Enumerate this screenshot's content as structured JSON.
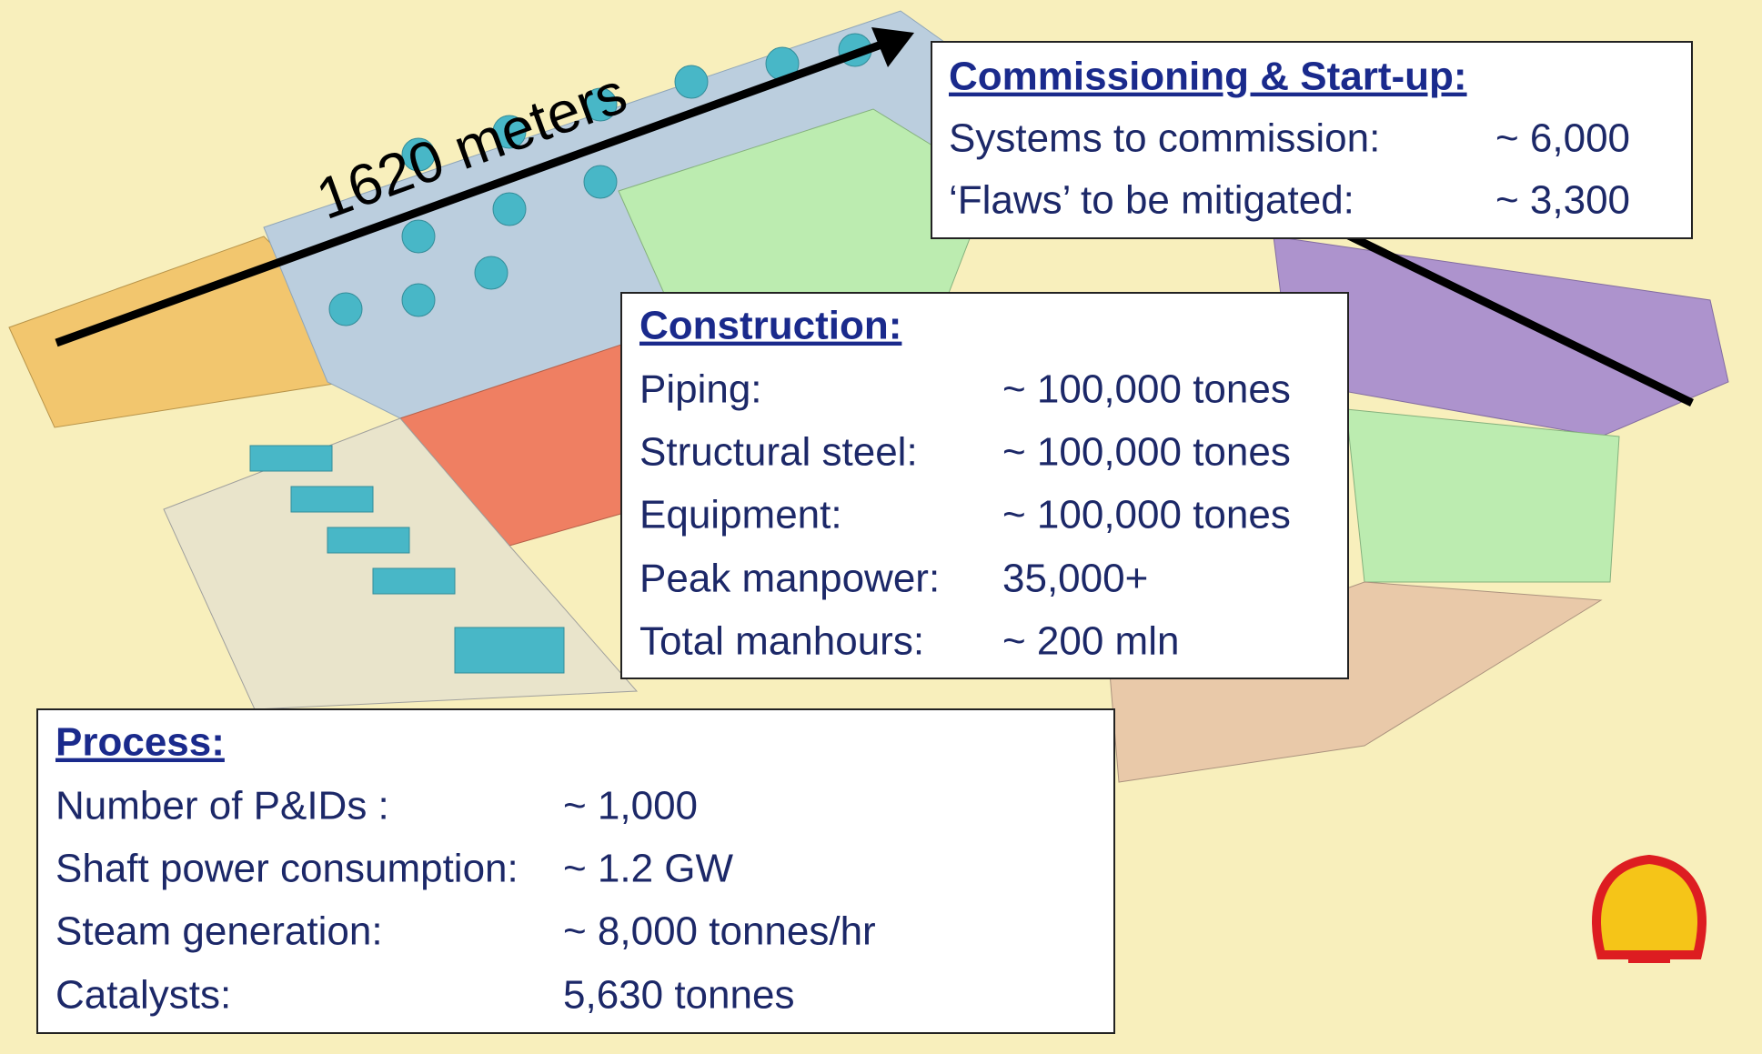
{
  "distance_label": "1620 meters",
  "commissioning": {
    "title": "Commissioning & Start-up:",
    "rows": [
      [
        "Systems to commission:",
        "~ 6,000"
      ],
      [
        "‘Flaws’ to be mitigated:",
        "~ 3,300"
      ]
    ]
  },
  "construction": {
    "title": "Construction:",
    "rows": [
      [
        "Piping:",
        "~ 100,000 tones"
      ],
      [
        "Structural steel:",
        "~ 100,000 tones"
      ],
      [
        "Equipment:",
        "~ 100,000 tones"
      ],
      [
        "Peak manpower:",
        "35,000+"
      ],
      [
        "Total manhours:",
        "~ 200 mln"
      ]
    ]
  },
  "process": {
    "title": "Process:",
    "rows": [
      [
        "Number of P&IDs :",
        "~ 1,000"
      ],
      [
        "Shaft power consumption:",
        "~ 1.2 GW"
      ],
      [
        "Steam generation:",
        "~ 8,000 tonnes/hr"
      ],
      [
        "Catalysts:",
        "5,630 tonnes"
      ]
    ]
  }
}
